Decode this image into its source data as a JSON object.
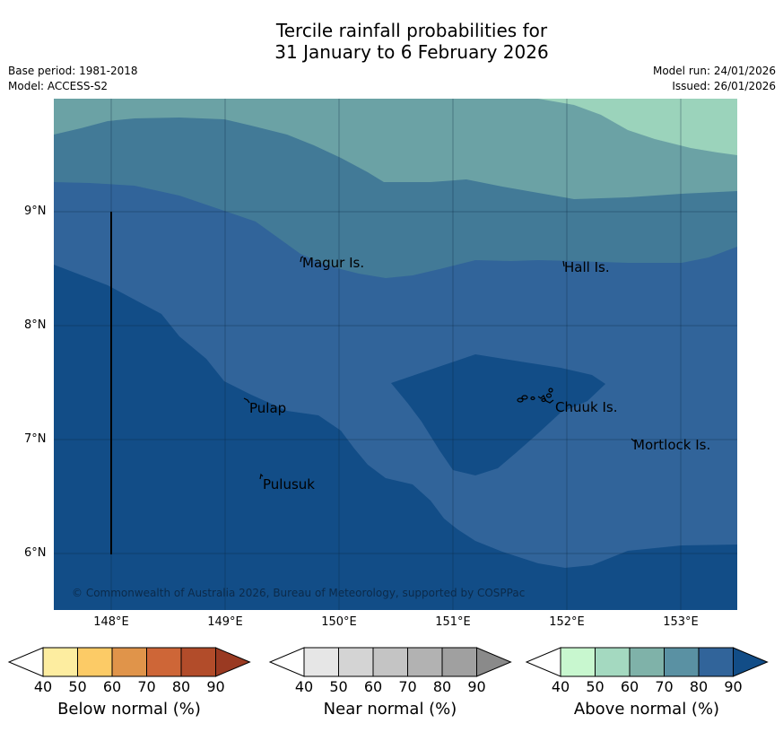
{
  "title_line1": "Tercile rainfall probabilities for",
  "title_line2": "31 January to 6 February 2026",
  "meta": {
    "base_period": "Base period: 1981-2018",
    "model": "Model: ACCESS-S2",
    "model_run": "Model run: 24/01/2026",
    "issued": "Issued: 26/01/2026"
  },
  "axes": {
    "lat_labels": [
      "9°N",
      "8°N",
      "7°N",
      "6°N"
    ],
    "lon_labels": [
      "148°E",
      "149°E",
      "150°E",
      "151°E",
      "152°E",
      "153°E"
    ]
  },
  "places": {
    "magur": "Magur Is.",
    "hall": "Hall Is.",
    "pulap": "Pulap",
    "chuuk": "Chuuk Is.",
    "mortlock": "Mortlock Is.",
    "pulusuk": "Pulusuk"
  },
  "copyright": "© Commonwealth of Australia 2026, Bureau of Meteorology, supported by COSPPac",
  "legend": {
    "ticks": [
      "40",
      "50",
      "60",
      "70",
      "80",
      "90"
    ],
    "below": {
      "label": "Below normal (%)",
      "colors": [
        "#ffffff",
        "#fdeda0",
        "#fccb66",
        "#e0944a",
        "#ce6637",
        "#b24c2a",
        "#9a3a22"
      ]
    },
    "near": {
      "label": "Near normal (%)",
      "colors": [
        "#ffffff",
        "#e6e6e6",
        "#d4d4d4",
        "#c4c4c4",
        "#b2b2b2",
        "#a0a0a0",
        "#8a8a8a"
      ]
    },
    "above": {
      "label": "Above normal (%)",
      "colors": [
        "#ffffff",
        "#c8f7cf",
        "#a4d9c0",
        "#7fb2a9",
        "#5a91a3",
        "#31649a",
        "#124d87"
      ]
    }
  },
  "map_colors": {
    "above_90": "#124d87",
    "above_80": "#31649a",
    "above_70": "#427a97",
    "above_60": "#6ba2a5",
    "above_50": "#9bd3bb"
  }
}
